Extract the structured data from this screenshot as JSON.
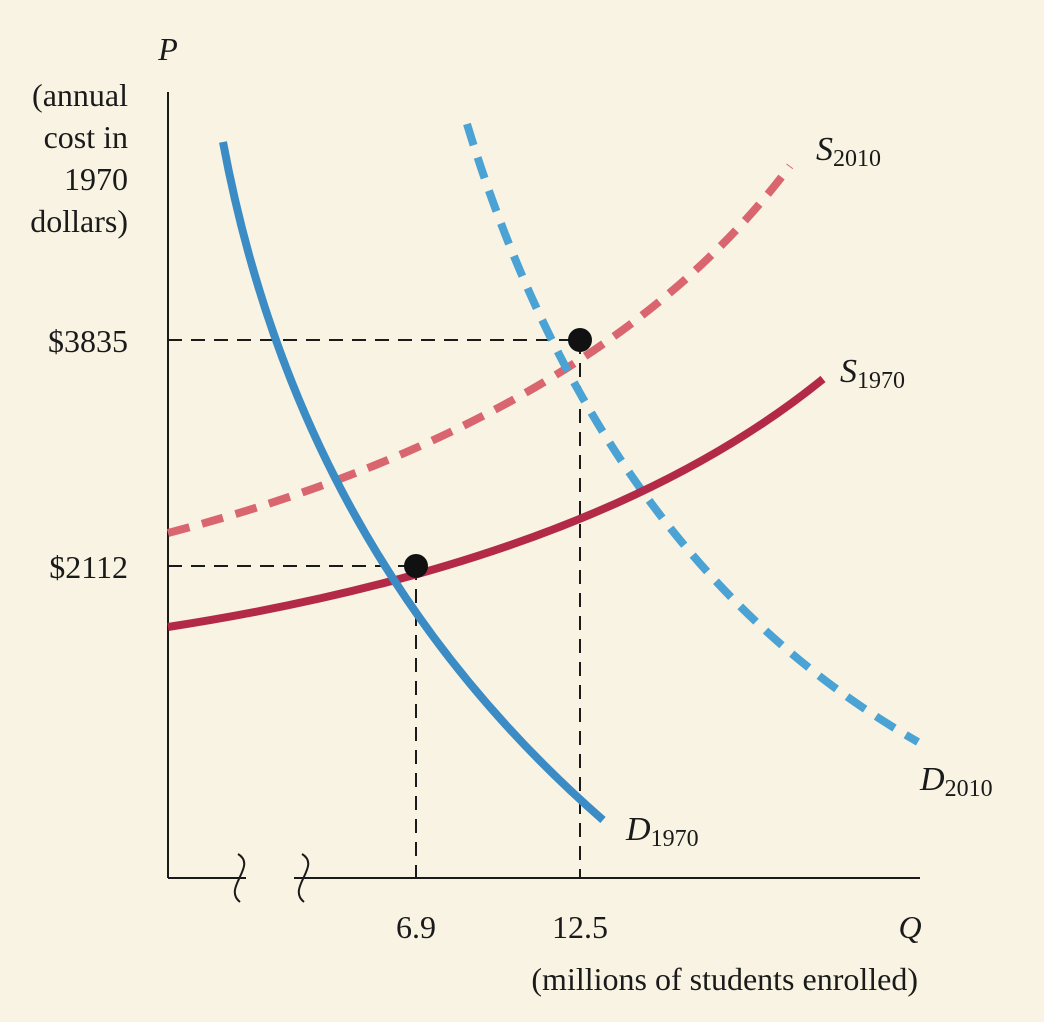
{
  "chart_data": {
    "type": "line",
    "x_axis": {
      "symbol": "Q",
      "label": "(millions of students enrolled)",
      "ticks": [
        "6.9",
        "12.5"
      ],
      "broken": true
    },
    "y_axis": {
      "symbol": "P",
      "label_lines": [
        "(annual",
        "cost in",
        "1970",
        "dollars)"
      ],
      "ticks": [
        "$2112",
        "$3835"
      ]
    },
    "series": [
      {
        "id": "D1970",
        "letter": "D",
        "sub": "1970",
        "color": "#3b8cc4",
        "dashed": false,
        "kind": "demand"
      },
      {
        "id": "S1970",
        "letter": "S",
        "sub": "1970",
        "color": "#b32a48",
        "dashed": false,
        "kind": "supply"
      },
      {
        "id": "D2010",
        "letter": "D",
        "sub": "2010",
        "color": "#4aa3d4",
        "dashed": true,
        "kind": "demand"
      },
      {
        "id": "S2010",
        "letter": "S",
        "sub": "2010",
        "color": "#d9656f",
        "dashed": true,
        "kind": "supply"
      }
    ],
    "equilibria": [
      {
        "year": "1970",
        "Q": 6.9,
        "P": 2112
      },
      {
        "year": "2010",
        "Q": 12.5,
        "P": 3835
      }
    ]
  }
}
